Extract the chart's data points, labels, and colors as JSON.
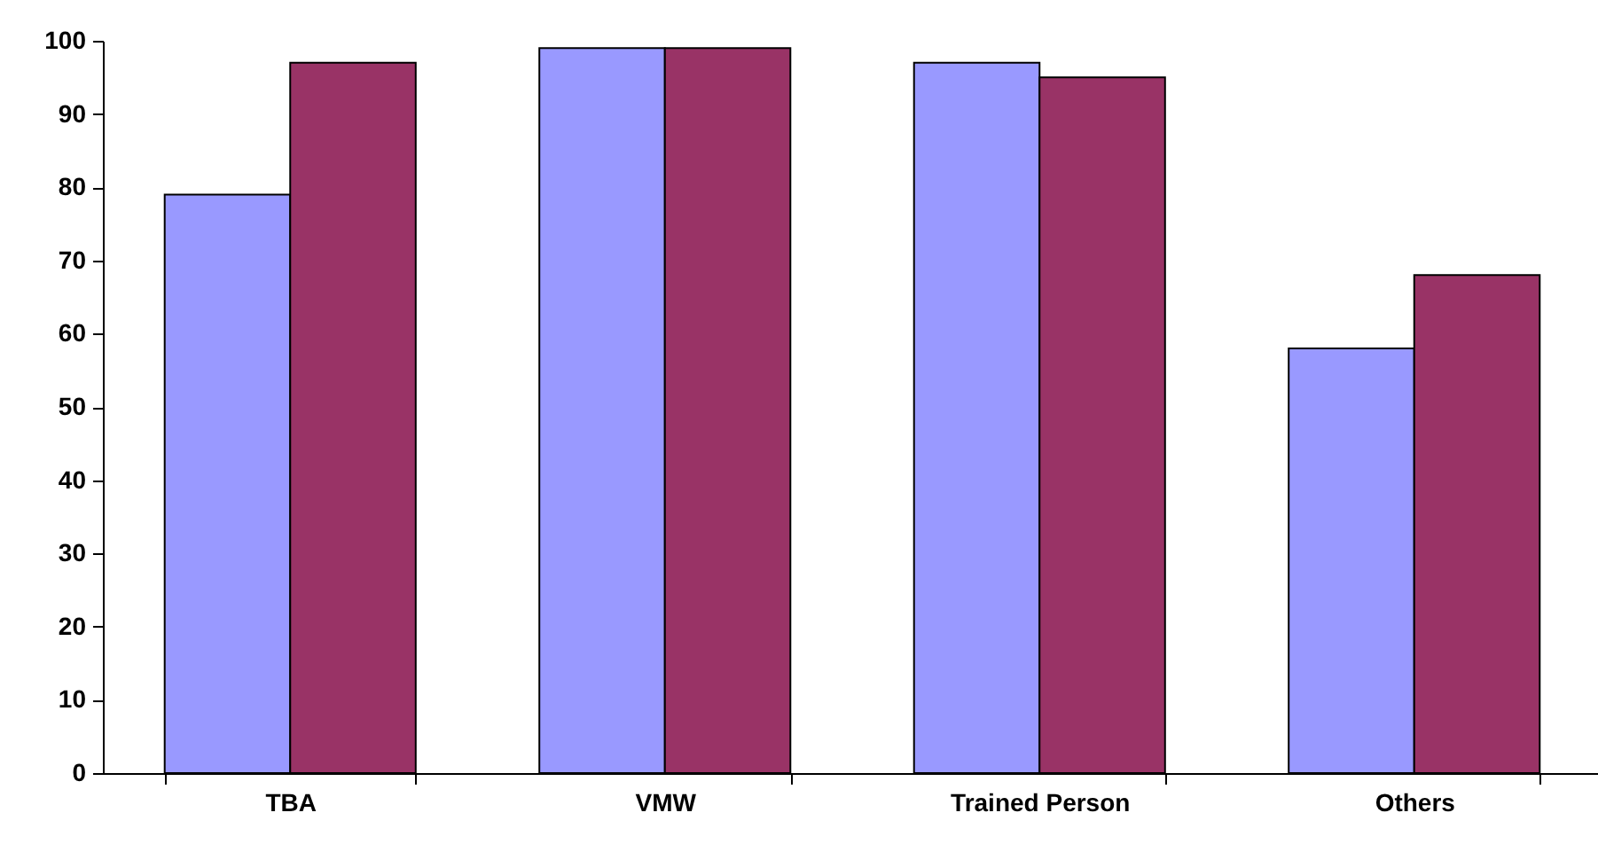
{
  "chart_data": {
    "type": "bar",
    "categories": [
      "TBA",
      "VMW",
      "Trained Person",
      "Others"
    ],
    "series": [
      {
        "color": "#9999ff",
        "values": [
          79,
          99,
          97,
          58
        ]
      },
      {
        "color": "#993366",
        "values": [
          97,
          99,
          95,
          68
        ]
      }
    ],
    "ylim": [
      0,
      100
    ],
    "yticks": [
      0,
      10,
      20,
      30,
      40,
      50,
      60,
      70,
      80,
      90,
      100
    ],
    "grid": false
  }
}
